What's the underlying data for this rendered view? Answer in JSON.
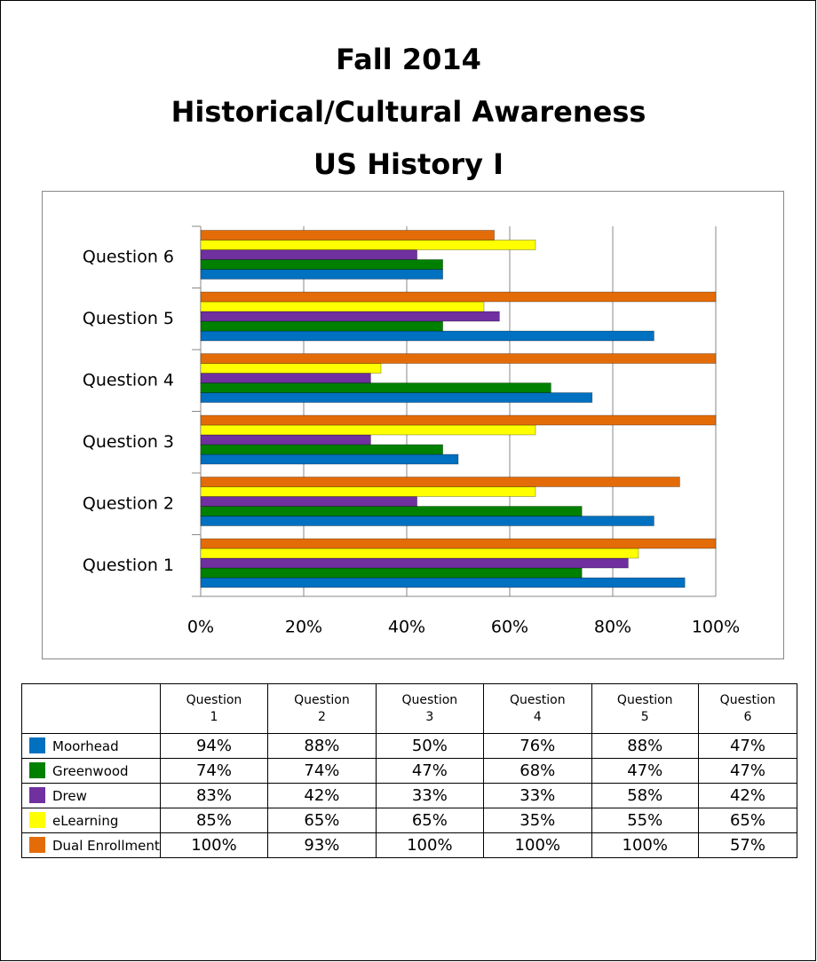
{
  "chart_data": {
    "type": "bar",
    "orientation": "horizontal",
    "title": [
      "Fall 2014",
      "Historical/Cultural Awareness",
      "US History I"
    ],
    "categories": [
      "Question 1",
      "Question 2",
      "Question  3",
      "Question 4",
      "Question 5",
      "Question 6"
    ],
    "table_columns": [
      "Question 1",
      "Question 2",
      "Question 3",
      "Question 4",
      "Question 5",
      "Question 6"
    ],
    "series": [
      {
        "name": "Moorhead",
        "color": "#0070c0",
        "values": [
          94,
          88,
          50,
          76,
          88,
          47
        ],
        "value_labels": [
          "94%",
          "88%",
          "50%",
          "76%",
          "88%",
          "47%"
        ]
      },
      {
        "name": "Greenwood",
        "color": "#008000",
        "values": [
          74,
          74,
          47,
          68,
          47,
          47
        ],
        "value_labels": [
          "74%",
          "74%",
          "47%",
          "68%",
          "47%",
          "47%"
        ]
      },
      {
        "name": "Drew",
        "color": "#7030a0",
        "values": [
          83,
          42,
          33,
          33,
          58,
          42
        ],
        "value_labels": [
          "83%",
          "42%",
          "33%",
          "33%",
          "58%",
          "42%"
        ]
      },
      {
        "name": "eLearning",
        "color": "#ffff00",
        "values": [
          85,
          65,
          65,
          35,
          55,
          65
        ],
        "value_labels": [
          "85%",
          "65%",
          "65%",
          "35%",
          "55%",
          "65%"
        ]
      },
      {
        "name": "Dual Enrollment",
        "color": "#e36c09",
        "values": [
          100,
          93,
          100,
          100,
          100,
          57
        ],
        "value_labels": [
          "100%",
          "93%",
          "100%",
          "100%",
          "100%",
          "57%"
        ]
      }
    ],
    "xlim": [
      0,
      100
    ],
    "xticks": [
      {
        "value": 0,
        "label": "0%"
      },
      {
        "value": 20,
        "label": "20%"
      },
      {
        "value": 40,
        "label": "40%"
      },
      {
        "value": 60,
        "label": "60%"
      },
      {
        "value": 80,
        "label": "80%"
      },
      {
        "value": 100,
        "label": "100%"
      }
    ],
    "grid": true
  }
}
